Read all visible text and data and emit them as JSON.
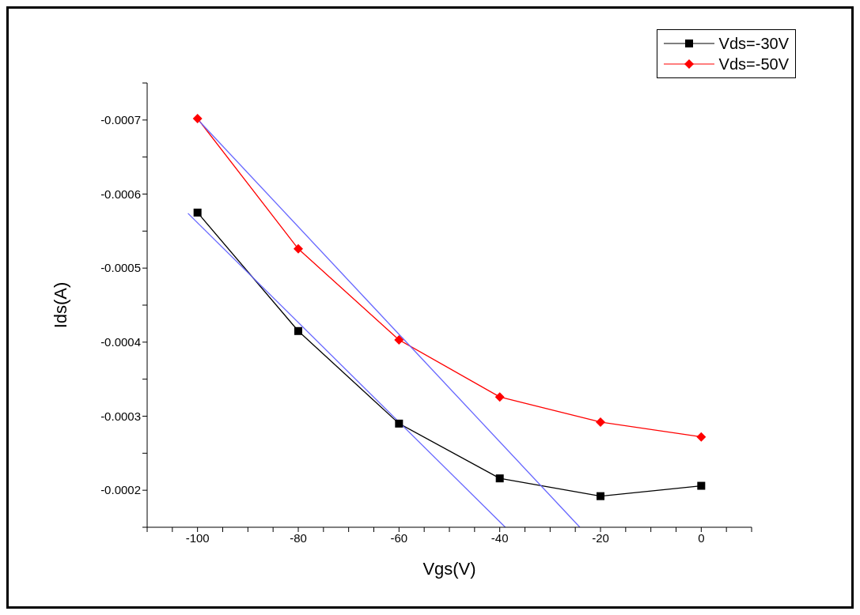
{
  "chart_data": {
    "type": "line",
    "xlabel": "Vgs(V)",
    "ylabel": "Ids(A)",
    "xlim": [
      -110,
      10
    ],
    "xticks": [
      {
        "value": -110,
        "label": null
      },
      {
        "value": -105,
        "label": null
      },
      -100,
      {
        "value": -95,
        "label": null
      },
      {
        "value": -90,
        "label": null
      },
      {
        "value": -85,
        "label": null
      },
      -80,
      {
        "value": -75,
        "label": null
      },
      {
        "value": -70,
        "label": null
      },
      {
        "value": -65,
        "label": null
      },
      -60,
      {
        "value": -55,
        "label": null
      },
      {
        "value": -50,
        "label": null
      },
      {
        "value": -45,
        "label": null
      },
      -40,
      {
        "value": -35,
        "label": null
      },
      {
        "value": -30,
        "label": null
      },
      {
        "value": -25,
        "label": null
      },
      -20,
      {
        "value": -15,
        "label": null
      },
      {
        "value": -10,
        "label": null
      },
      {
        "value": -5,
        "label": null
      },
      0,
      {
        "value": 5,
        "label": null
      },
      {
        "value": 10,
        "label": null
      }
    ],
    "ylim": [
      -0.00015,
      -0.00075
    ],
    "yticks": [
      {
        "value": -0.00015,
        "label": null
      },
      -0.0002,
      {
        "value": -0.00025,
        "label": null
      },
      -0.0003,
      {
        "value": -0.00035,
        "label": null
      },
      -0.0004,
      {
        "value": -0.00045,
        "label": null
      },
      -0.0005,
      {
        "value": -0.00055,
        "label": null
      },
      -0.0006,
      {
        "value": -0.00065,
        "label": null
      },
      -0.0007,
      {
        "value": -0.00075,
        "label": null
      }
    ],
    "legend": "top right",
    "line_style": "solid",
    "series": [
      {
        "name": "Vds=-30V",
        "color": "#000000",
        "marker": "square",
        "x": [
          -100,
          -80,
          -60,
          -40,
          -20,
          0
        ],
        "values": [
          -0.000575,
          -0.000415,
          -0.00029,
          -0.000216,
          -0.000192,
          -0.000206
        ]
      },
      {
        "name": "Vds=-50V",
        "color": "#ff0000",
        "marker": "diamond",
        "x": [
          -100,
          -80,
          -60,
          -40,
          -20,
          0
        ],
        "values": [
          -0.000702,
          -0.000526,
          -0.000403,
          -0.000326,
          -0.000292,
          -0.000272
        ]
      },
      {
        "color": "#6666ff",
        "marker": "none",
        "x": [
          -101.9,
          -38.9
        ],
        "values": [
          -0.000574,
          -0.00015
        ]
      },
      {
        "color": "#6666ff",
        "marker": "none",
        "x": [
          -100,
          -24.1
        ],
        "values": [
          -0.000701,
          -0.00015
        ]
      }
    ]
  }
}
